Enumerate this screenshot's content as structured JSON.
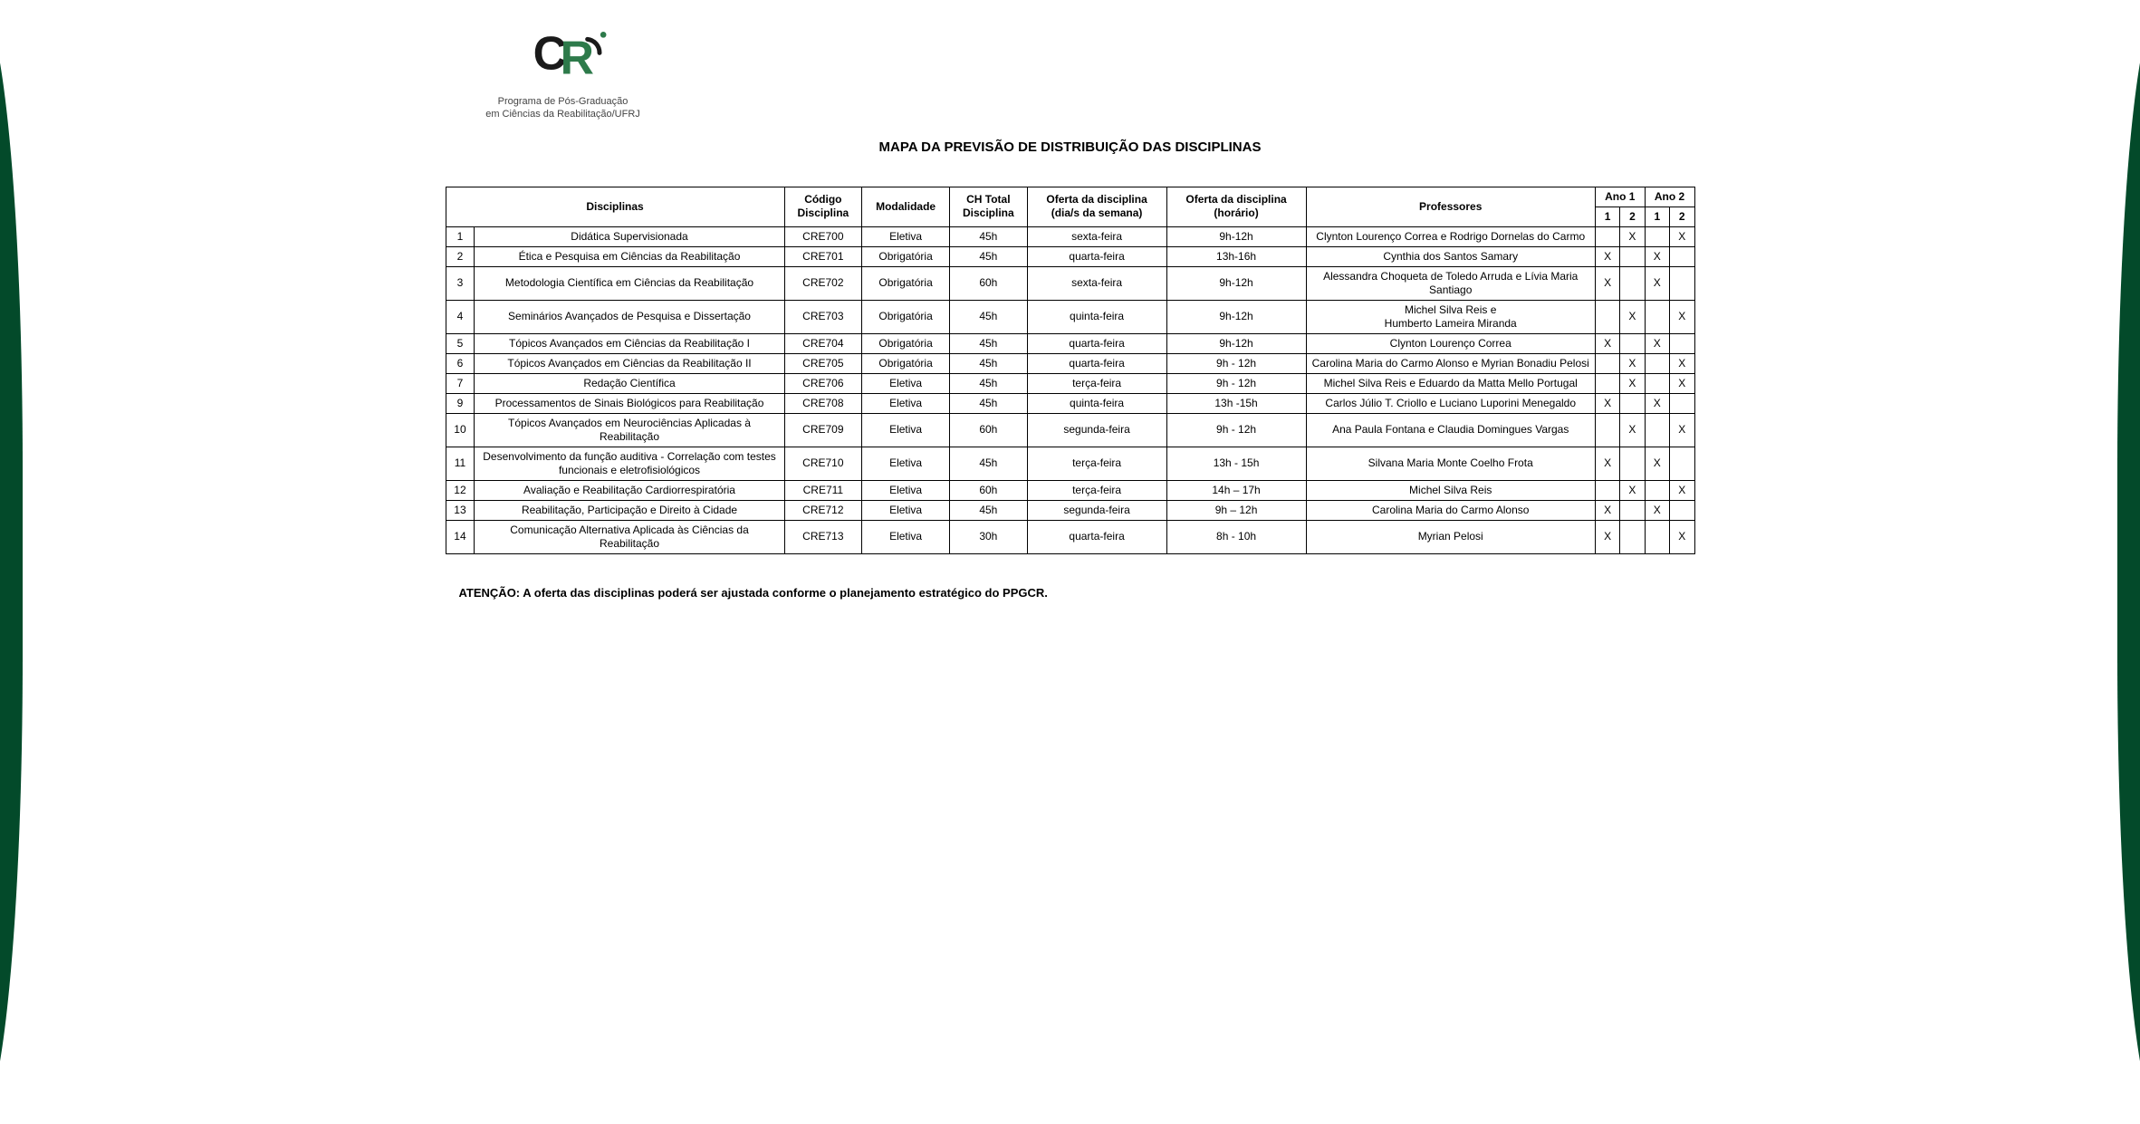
{
  "logo": {
    "line1": "Programa de Pós-Graduação",
    "line2": "em Ciências da Reabilitação/UFRJ",
    "green": "#2d7a4a",
    "dark": "#1a1a1a"
  },
  "title": "MAPA DA PREVISÃO DE DISTRIBUIÇÃO DAS DISCIPLINAS",
  "headers": {
    "disciplinas": "Disciplinas",
    "codigo": "Código Disciplina",
    "modalidade": "Modalidade",
    "ch_total": "CH Total Disciplina",
    "oferta_dia": "Oferta da disciplina (dia/s da semana)",
    "oferta_hor": "Oferta da disciplina (horário)",
    "professores": "Professores",
    "ano1": "Ano 1",
    "ano2": "Ano 2",
    "sem1": "1",
    "sem2": "2"
  },
  "rows": [
    {
      "n": "1",
      "disc": "Didática Supervisionada",
      "cod": "CRE700",
      "mod": "Eletiva",
      "ch": "45h",
      "dia": "sexta-feira",
      "hor": "9h-12h",
      "prof": "Clynton Lourenço Correa e Rodrigo Dornelas do Carmo",
      "a1s1": "",
      "a1s2": "X",
      "a2s1": "",
      "a2s2": "X"
    },
    {
      "n": "2",
      "disc": "Ética e Pesquisa em Ciências da Reabilitação",
      "cod": "CRE701",
      "mod": "Obrigatória",
      "ch": "45h",
      "dia": "quarta-feira",
      "hor": "13h-16h",
      "prof": "Cynthia dos Santos Samary",
      "a1s1": "X",
      "a1s2": "",
      "a2s1": "X",
      "a2s2": ""
    },
    {
      "n": "3",
      "disc": "Metodologia Científica em Ciências da Reabilitação",
      "cod": "CRE702",
      "mod": "Obrigatória",
      "ch": "60h",
      "dia": "sexta-feira",
      "hor": "9h-12h",
      "prof": "Alessandra Choqueta de Toledo Arruda e Lívia Maria Santiago",
      "a1s1": "X",
      "a1s2": "",
      "a2s1": "X",
      "a2s2": ""
    },
    {
      "n": "4",
      "disc": "Seminários Avançados de Pesquisa e Dissertação",
      "cod": "CRE703",
      "mod": "Obrigatória",
      "ch": "45h",
      "dia": "quinta-feira",
      "hor": "9h-12h",
      "prof": "Michel Silva Reis e\nHumberto Lameira Miranda",
      "a1s1": "",
      "a1s2": "X",
      "a2s1": "",
      "a2s2": "X"
    },
    {
      "n": "5",
      "disc": "Tópicos Avançados em Ciências da Reabilitação I",
      "cod": "CRE704",
      "mod": "Obrigatória",
      "ch": "45h",
      "dia": "quarta-feira",
      "hor": "9h-12h",
      "prof": "Clynton Lourenço Correa",
      "a1s1": "X",
      "a1s2": "",
      "a2s1": "X",
      "a2s2": ""
    },
    {
      "n": "6",
      "disc": "Tópicos Avançados em Ciências da Reabilitação II",
      "cod": "CRE705",
      "mod": "Obrigatória",
      "ch": "45h",
      "dia": "quarta-feira",
      "hor": "9h - 12h",
      "prof": "Carolina Maria do Carmo Alonso e Myrian Bonadiu Pelosi",
      "a1s1": "",
      "a1s2": "X",
      "a2s1": "",
      "a2s2": "X"
    },
    {
      "n": "7",
      "disc": "Redação Científica",
      "cod": "CRE706",
      "mod": "Eletiva",
      "ch": "45h",
      "dia": "terça-feira",
      "hor": "9h - 12h",
      "prof": "Michel Silva Reis e Eduardo da Matta Mello Portugal",
      "a1s1": "",
      "a1s2": "X",
      "a2s1": "",
      "a2s2": "X"
    },
    {
      "n": "9",
      "disc": "Processamentos de Sinais Biológicos para Reabilitação",
      "cod": "CRE708",
      "mod": "Eletiva",
      "ch": "45h",
      "dia": "quinta-feira",
      "hor": "13h -15h",
      "prof": "Carlos Júlio T. Criollo e Luciano Luporini Menegaldo",
      "a1s1": "X",
      "a1s2": "",
      "a2s1": "X",
      "a2s2": ""
    },
    {
      "n": "10",
      "disc": "Tópicos Avançados em Neurociências Aplicadas à Reabilitação",
      "cod": "CRE709",
      "mod": "Eletiva",
      "ch": "60h",
      "dia": "segunda-feira",
      "hor": "9h - 12h",
      "prof": "Ana Paula Fontana e Claudia Domingues Vargas",
      "a1s1": "",
      "a1s2": "X",
      "a2s1": "",
      "a2s2": "X"
    },
    {
      "n": "11",
      "disc": "Desenvolvimento da função auditiva - Correlação com testes funcionais e eletrofisiológicos",
      "cod": "CRE710",
      "mod": "Eletiva",
      "ch": "45h",
      "dia": "terça-feira",
      "hor": "13h - 15h",
      "prof": "Silvana Maria Monte Coelho Frota",
      "a1s1": "X",
      "a1s2": "",
      "a2s1": "X",
      "a2s2": ""
    },
    {
      "n": "12",
      "disc": "Avaliação e Reabilitação Cardiorrespiratória",
      "cod": "CRE711",
      "mod": "Eletiva",
      "ch": "60h",
      "dia": "terça-feira",
      "hor": "14h – 17h",
      "prof": "Michel Silva Reis",
      "a1s1": "",
      "a1s2": "X",
      "a2s1": "",
      "a2s2": "X"
    },
    {
      "n": "13",
      "disc": "Reabilitação, Participação e Direito à Cidade",
      "cod": "CRE712",
      "mod": "Eletiva",
      "ch": "45h",
      "dia": "segunda-feira",
      "hor": "9h – 12h",
      "prof": "Carolina Maria do Carmo Alonso",
      "a1s1": "X",
      "a1s2": "",
      "a2s1": "X",
      "a2s2": ""
    },
    {
      "n": "14",
      "disc": "Comunicação Alternativa Aplicada às Ciências da Reabilitação",
      "cod": "CRE713",
      "mod": "Eletiva",
      "ch": "30h",
      "dia": "quarta-feira",
      "hor": "8h - 10h",
      "prof": "Myrian Pelosi",
      "a1s1": "X",
      "a1s2": "",
      "a2s1": "",
      "a2s2": "X"
    }
  ],
  "footer_note": "ATENÇÃO: A oferta das disciplinas poderá ser ajustada conforme o planejamento estratégico do PPGCR."
}
